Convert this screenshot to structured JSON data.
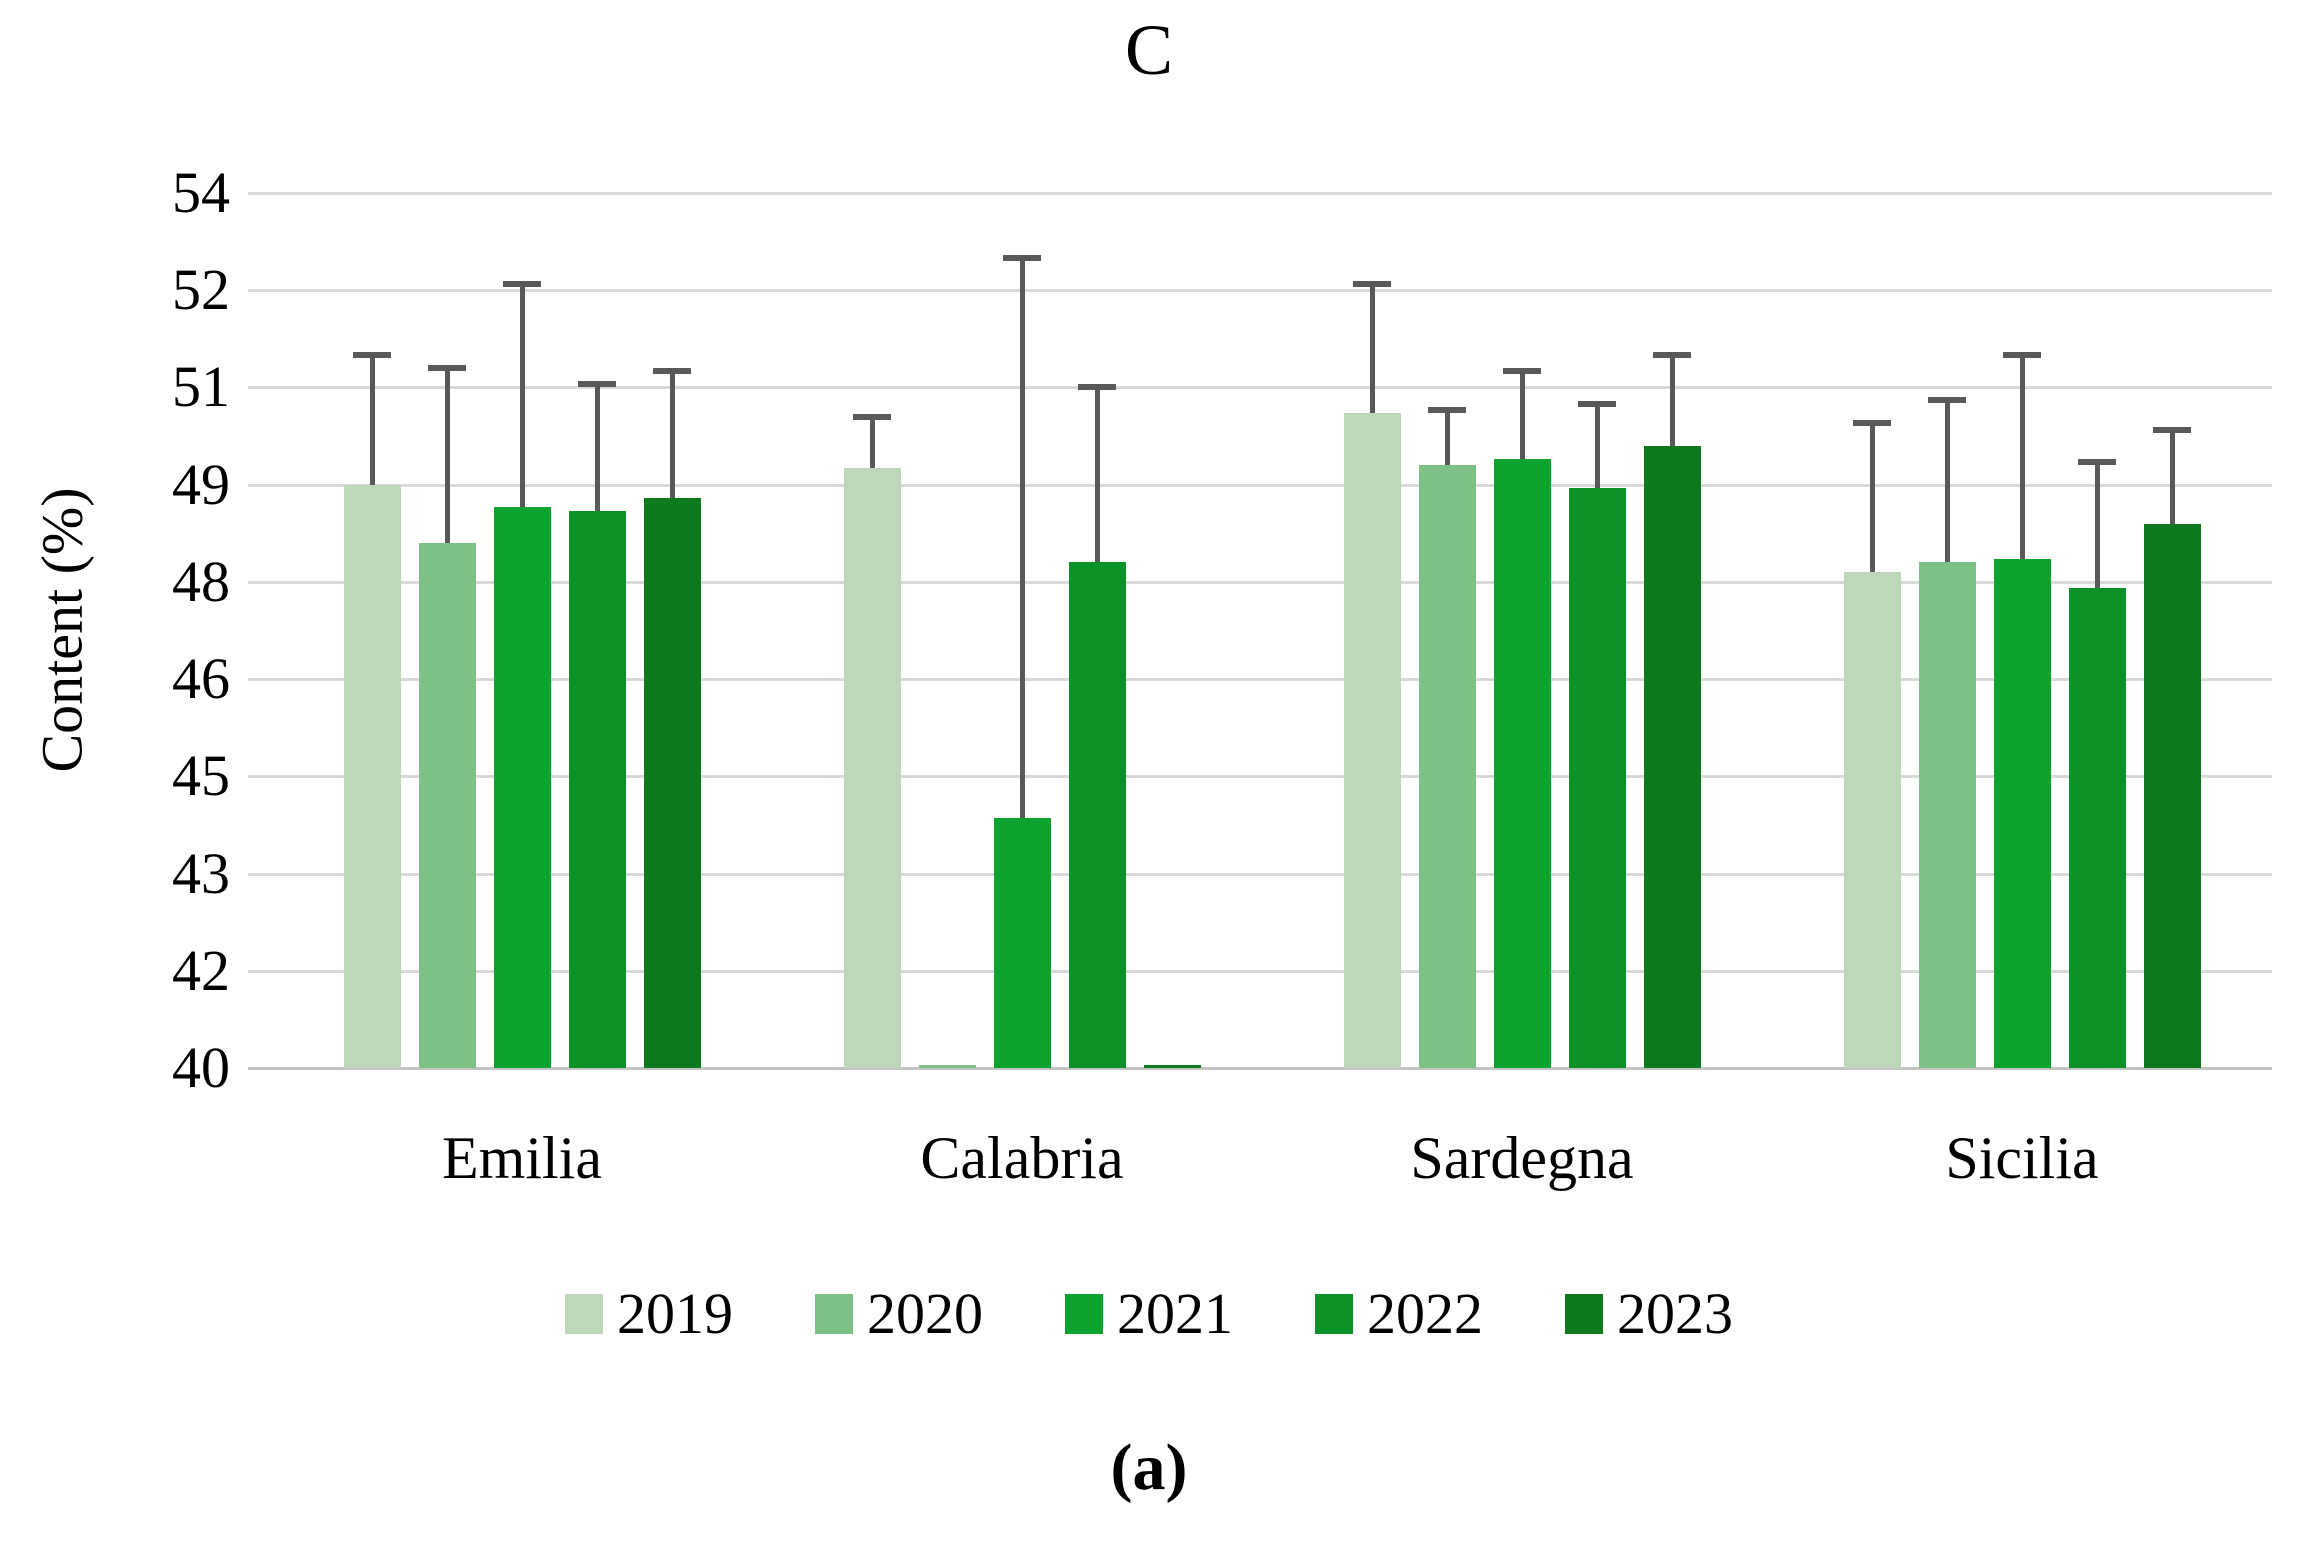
{
  "figure": {
    "title": "C",
    "caption": "(a)"
  },
  "chart_data": {
    "type": "bar",
    "title": "C",
    "xlabel": "",
    "ylabel": "Content (%)",
    "ylim": [
      40,
      53.5
    ],
    "grid": true,
    "legend_position": "bottom",
    "error_bars": "plus-direction, gray caps",
    "y_ticks": [
      {
        "label": "54",
        "value": 53.5
      },
      {
        "label": "52",
        "value": 52.0
      },
      {
        "label": "51",
        "value": 50.5
      },
      {
        "label": "49",
        "value": 49.0
      },
      {
        "label": "48",
        "value": 47.5
      },
      {
        "label": "46",
        "value": 46.0
      },
      {
        "label": "45",
        "value": 44.5
      },
      {
        "label": "43",
        "value": 43.0
      },
      {
        "label": "42",
        "value": 41.5
      },
      {
        "label": "40",
        "value": 40.0
      }
    ],
    "categories": [
      "Emilia",
      "Calabria",
      "Sardegna",
      "Sicilia"
    ],
    "series": [
      {
        "name": "2019",
        "color": "#bdd7b9",
        "values": [
          49.0,
          49.25,
          50.1,
          47.65
        ],
        "error_plus": [
          2.0,
          0.8,
          2.0,
          2.3
        ]
      },
      {
        "name": "2020",
        "color": "#7dc184",
        "values": [
          48.1,
          40.05,
          49.3,
          47.8
        ],
        "error_plus": [
          2.7,
          0,
          0.85,
          2.5
        ]
      },
      {
        "name": "2021",
        "color": "#0ca32e",
        "values": [
          48.65,
          43.85,
          49.4,
          47.85
        ],
        "error_plus": [
          3.45,
          8.65,
          1.35,
          3.15
        ]
      },
      {
        "name": "2022",
        "color": "#0a9227",
        "values": [
          48.6,
          47.8,
          48.95,
          47.4
        ],
        "error_plus": [
          1.95,
          2.7,
          1.3,
          1.95
        ]
      },
      {
        "name": "2023",
        "color": "#0d7a1d",
        "values": [
          48.8,
          40.05,
          49.6,
          48.4
        ],
        "error_plus": [
          1.95,
          0,
          1.4,
          1.45
        ]
      }
    ]
  }
}
